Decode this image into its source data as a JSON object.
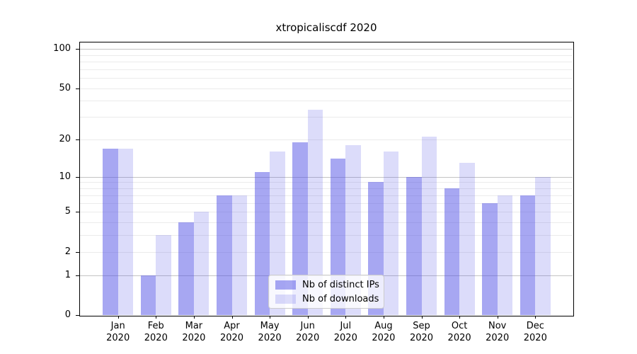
{
  "title": "xtropicaliscdf 2020",
  "legend": {
    "items": [
      {
        "label": "Nb of distinct IPs",
        "color": "#a8a8f3",
        "rgba": "rgba(80,80,230,0.5)"
      },
      {
        "label": "Nb of downloads",
        "color": "#dcdcfa",
        "rgba": "rgba(80,80,230,0.2)"
      }
    ],
    "position": "lower center"
  },
  "y_axis": {
    "tick_values": [
      100,
      50,
      20,
      10,
      5,
      2,
      1,
      0
    ],
    "tick_labels": [
      "100",
      "50",
      "20",
      "10",
      "5",
      "2",
      "1",
      "0"
    ]
  },
  "colors": {
    "bar_base": "#5050e6",
    "series_dark_flat": "#a8a8f3",
    "series_light_flat": "#dcdcfa",
    "grid_minor": "#ebebeb",
    "grid_major": "#c4c4c4",
    "spine": "#000000",
    "background": "#ffffff"
  },
  "chart_data": {
    "type": "bar",
    "title": "xtropicaliscdf 2020",
    "categories": [
      "Jan 2020",
      "Feb 2020",
      "Mar 2020",
      "Apr 2020",
      "May 2020",
      "Jun 2020",
      "Jul 2020",
      "Aug 2020",
      "Sep 2020",
      "Oct 2020",
      "Nov 2020",
      "Dec 2020"
    ],
    "series": [
      {
        "name": "Nb of distinct IPs",
        "values": [
          17,
          1,
          4,
          7,
          11,
          19,
          14,
          9,
          10,
          8,
          6,
          7
        ]
      },
      {
        "name": "Nb of downloads",
        "values": [
          17,
          3,
          5,
          7,
          16,
          34,
          18,
          16,
          21,
          13,
          7,
          10
        ]
      }
    ],
    "xlabel": "",
    "ylabel": "",
    "yscale": "log1p",
    "ylim": [
      0,
      113
    ],
    "yticks": [
      0,
      1,
      2,
      5,
      10,
      20,
      50,
      100
    ],
    "grid": "horizontal, minor at 2-9 and 20-90, major at 1/10/100",
    "legend_position": "lower center"
  }
}
